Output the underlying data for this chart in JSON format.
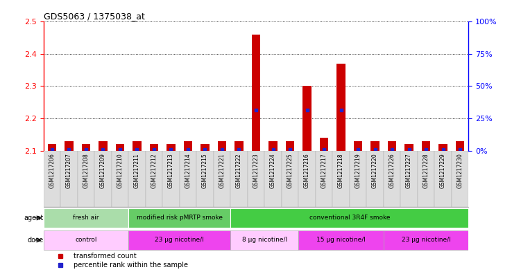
{
  "title": "GDS5063 / 1375038_at",
  "samples": [
    "GSM1217206",
    "GSM1217207",
    "GSM1217208",
    "GSM1217209",
    "GSM1217210",
    "GSM1217211",
    "GSM1217212",
    "GSM1217213",
    "GSM1217214",
    "GSM1217215",
    "GSM1217221",
    "GSM1217222",
    "GSM1217223",
    "GSM1217224",
    "GSM1217225",
    "GSM1217216",
    "GSM1217217",
    "GSM1217218",
    "GSM1217219",
    "GSM1217220",
    "GSM1217226",
    "GSM1217227",
    "GSM1217228",
    "GSM1217229",
    "GSM1217230"
  ],
  "transformed_count": [
    2.12,
    2.13,
    2.12,
    2.13,
    2.12,
    2.13,
    2.12,
    2.12,
    2.13,
    2.12,
    2.13,
    2.13,
    2.46,
    2.13,
    2.13,
    2.3,
    2.14,
    2.37,
    2.13,
    2.13,
    2.13,
    2.12,
    2.13,
    2.12,
    2.13
  ],
  "percentile_rank_y": [
    2.103,
    2.103,
    2.103,
    2.103,
    2.103,
    2.103,
    2.103,
    2.103,
    2.103,
    2.103,
    2.103,
    2.103,
    2.225,
    2.103,
    2.103,
    2.225,
    2.103,
    2.225,
    2.103,
    2.103,
    2.103,
    2.103,
    2.103,
    2.103,
    2.103
  ],
  "ylim": [
    2.1,
    2.5
  ],
  "yticks_left": [
    2.1,
    2.2,
    2.3,
    2.4,
    2.5
  ],
  "yticks_right": [
    0,
    25,
    50,
    75,
    100
  ],
  "bar_color": "#cc0000",
  "dot_color": "#2222cc",
  "agent_groups": [
    {
      "label": "fresh air",
      "start": 0,
      "end": 5,
      "color": "#aaddaa"
    },
    {
      "label": "modified risk pMRTP smoke",
      "start": 5,
      "end": 11,
      "color": "#66cc66"
    },
    {
      "label": "conventional 3R4F smoke",
      "start": 11,
      "end": 25,
      "color": "#44cc44"
    }
  ],
  "dose_groups": [
    {
      "label": "control",
      "start": 0,
      "end": 5,
      "color": "#ffccff"
    },
    {
      "label": "23 μg nicotine/l",
      "start": 5,
      "end": 11,
      "color": "#ee44ee"
    },
    {
      "label": "8 μg nicotine/l",
      "start": 11,
      "end": 15,
      "color": "#ffccff"
    },
    {
      "label": "15 μg nicotine/l",
      "start": 15,
      "end": 20,
      "color": "#ee44ee"
    },
    {
      "label": "23 μg nicotine/l",
      "start": 20,
      "end": 25,
      "color": "#ee44ee"
    }
  ],
  "legend_items": [
    {
      "label": "transformed count",
      "color": "#cc0000"
    },
    {
      "label": "percentile rank within the sample",
      "color": "#2222cc"
    }
  ]
}
